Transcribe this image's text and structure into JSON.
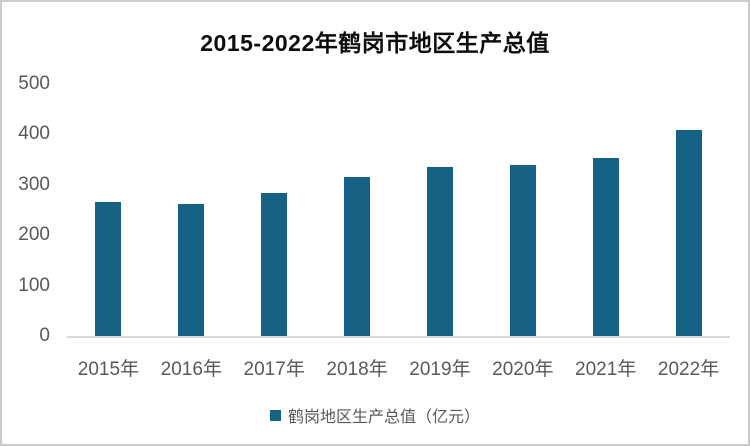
{
  "chart_data": {
    "type": "bar",
    "title": "2015-2022年鹤岗市地区生产总值",
    "categories": [
      "2015年",
      "2016年",
      "2017年",
      "2018年",
      "2019年",
      "2020年",
      "2021年",
      "2022年"
    ],
    "series": [
      {
        "name": "鹤岗地区生产总值（亿元）",
        "values": [
          265,
          262,
          283,
          316,
          336,
          340,
          354,
          408
        ]
      }
    ],
    "xlabel": "",
    "ylabel": "",
    "ylim": [
      0,
      500
    ],
    "yticks": [
      0,
      100,
      200,
      300,
      400,
      500
    ],
    "grid": false,
    "legend_position": "bottom",
    "colors": {
      "bar": "#166285",
      "axis_line": "#d9d9d9",
      "tick_label": "#595959",
      "title": "#0d0d0d",
      "frame_border": "#cbcbcb",
      "background": "#ffffff"
    }
  },
  "legend": {
    "label": "鹤岗地区生产总值（亿元）"
  }
}
